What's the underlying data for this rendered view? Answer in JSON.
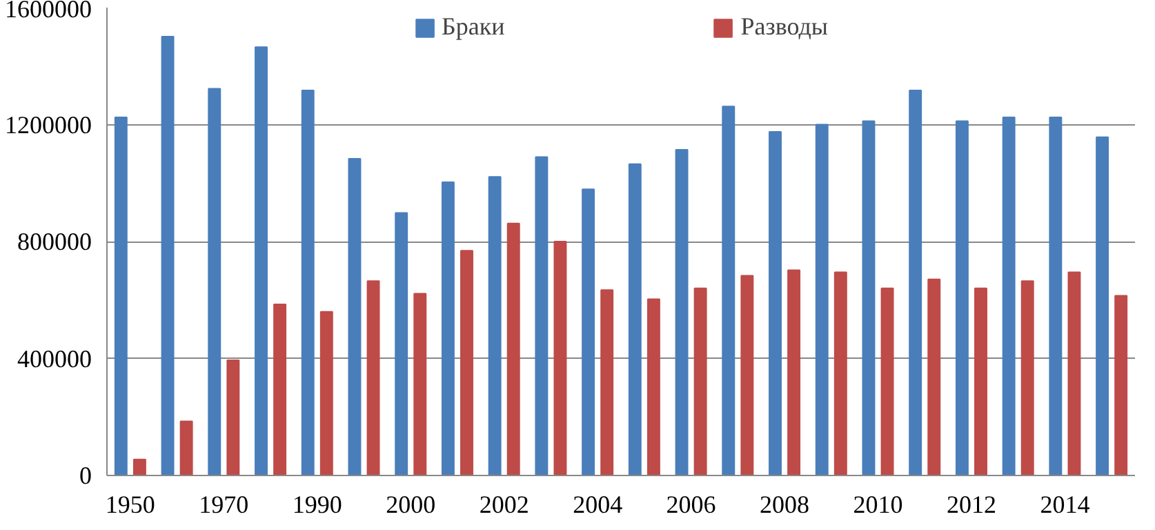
{
  "chart_data": {
    "type": "bar",
    "categories": [
      "1950",
      null,
      "1970",
      null,
      "1990",
      null,
      "2000",
      null,
      "2002",
      null,
      "2004",
      null,
      "2006",
      null,
      "2008",
      null,
      "2010",
      null,
      "2012",
      null,
      "2014",
      null
    ],
    "series": [
      {
        "name": "Браки",
        "color": "#4a7ebb",
        "values": [
          1225000,
          1501000,
          1323000,
          1465000,
          1317000,
          1083000,
          898000,
          1003000,
          1021000,
          1089000,
          979000,
          1065000,
          1114000,
          1262000,
          1175000,
          1200000,
          1212000,
          1317000,
          1212000,
          1225000,
          1225000,
          1157000
        ]
      },
      {
        "name": "Разводы",
        "color": "#be4b48",
        "values": [
          55000,
          185000,
          394000,
          585000,
          560000,
          665000,
          622000,
          769000,
          862000,
          800000,
          634000,
          603000,
          640000,
          683000,
          702000,
          695000,
          640000,
          671000,
          640000,
          665000,
          695000,
          615000
        ]
      }
    ],
    "ylim": [
      0,
      1600000
    ],
    "yticks": [
      0,
      400000,
      800000,
      1200000,
      1600000
    ],
    "grid": "y",
    "legend": "top"
  }
}
